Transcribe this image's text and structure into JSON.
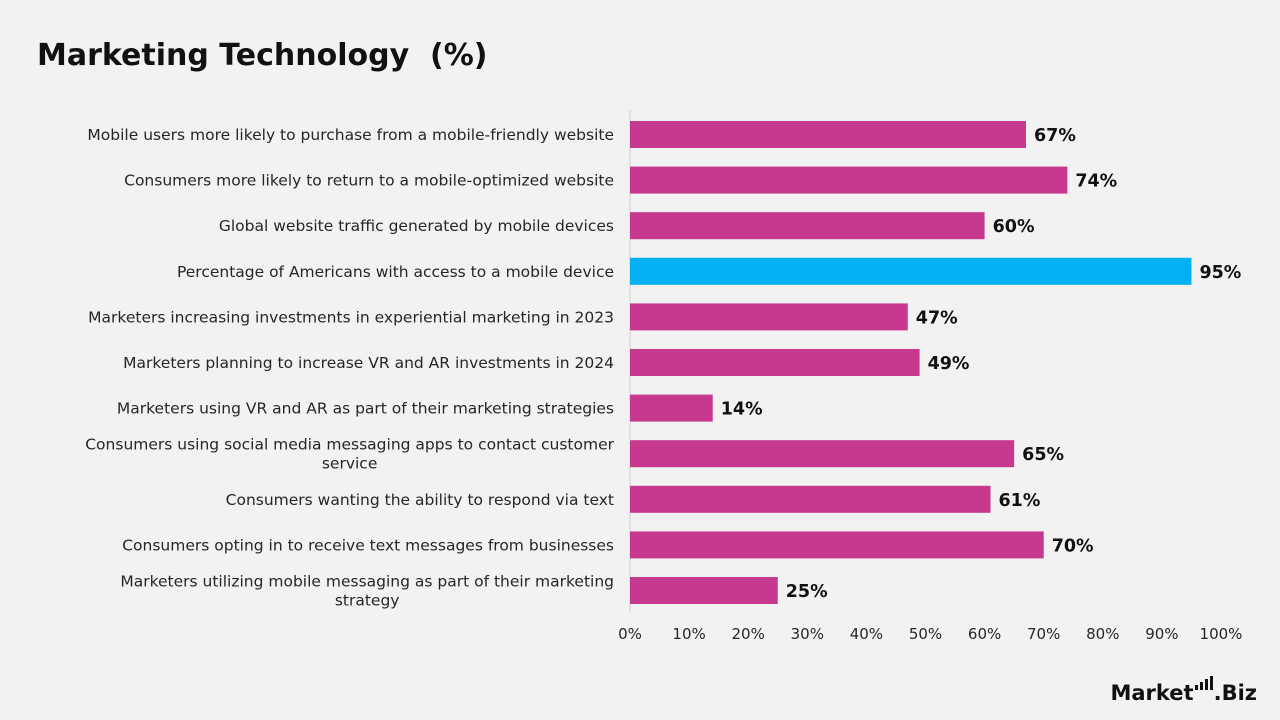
{
  "chart_data": {
    "type": "bar",
    "orientation": "horizontal",
    "title": "Marketing Technology  (%)",
    "categories": [
      "Mobile users more likely to purchase from a mobile-friendly website",
      "Consumers more likely to return to a mobile-optimized website",
      "Global website traffic generated by mobile devices",
      "Percentage of Americans with access to a mobile device",
      "Marketers increasing investments in experiential marketing in 2023",
      "Marketers planning to increase VR and AR investments in 2024",
      "Marketers using VR and AR as part of their marketing strategies",
      "Consumers using social media messaging apps to contact customer service",
      "Consumers wanting the ability to respond via text",
      "Consumers opting in to receive text messages from businesses",
      "Marketers utilizing mobile messaging as part of their marketing strategy"
    ],
    "values": [
      67,
      74,
      60,
      95,
      47,
      49,
      14,
      65,
      61,
      70,
      25
    ],
    "value_labels": [
      "67%",
      "74%",
      "60%",
      "95%",
      "47%",
      "49%",
      "14%",
      "65%",
      "61%",
      "70%",
      "25%"
    ],
    "highlight_index": 3,
    "xlim": [
      0,
      100
    ],
    "x_ticks": [
      "0%",
      "10%",
      "20%",
      "30%",
      "40%",
      "50%",
      "60%",
      "70%",
      "80%",
      "90%",
      "100%"
    ],
    "xlabel": "",
    "ylabel": "",
    "grid": false,
    "colors": {
      "bar": "#c7388f",
      "highlight": "#00b0f0",
      "axis_line": "#d0d0d0",
      "label_text": "#262626",
      "value_text": "#111111"
    }
  },
  "brand": {
    "logo_left": "Market",
    "logo_right": ".Biz"
  }
}
